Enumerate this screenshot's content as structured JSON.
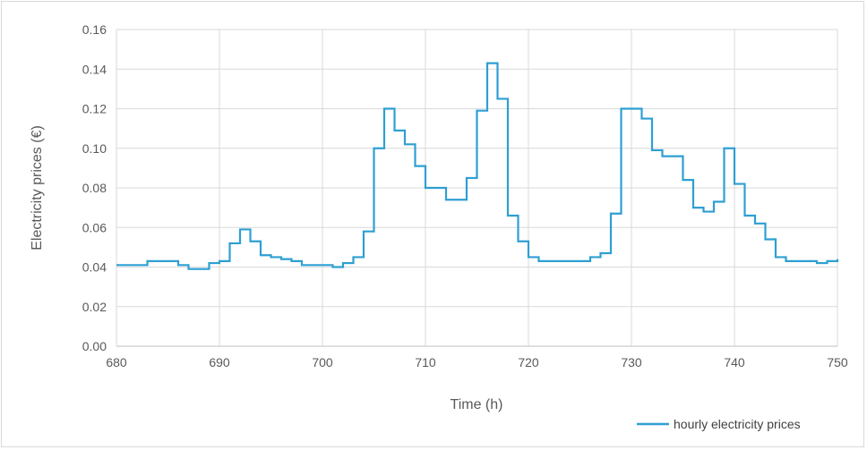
{
  "chart_data": {
    "type": "line",
    "title": "",
    "xlabel": "Time (h)",
    "ylabel": "Electricity prices (€)",
    "xlim": [
      680,
      750
    ],
    "ylim": [
      0,
      0.16
    ],
    "x_ticks": [
      "680",
      "690",
      "700",
      "710",
      "720",
      "730",
      "740",
      "750"
    ],
    "y_ticks": [
      "0.00",
      "0.02",
      "0.04",
      "0.06",
      "0.08",
      "0.10",
      "0.12",
      "0.14",
      "0.16"
    ],
    "grid": true,
    "legend_position": "bottom-right",
    "series": [
      {
        "name": "hourly electricity prices",
        "color": "#2e9fd2",
        "step": true,
        "x": [
          680,
          681,
          682,
          683,
          684,
          685,
          686,
          687,
          688,
          689,
          690,
          691,
          692,
          693,
          694,
          695,
          696,
          697,
          698,
          699,
          700,
          701,
          702,
          703,
          704,
          705,
          706,
          707,
          708,
          709,
          710,
          711,
          712,
          713,
          714,
          715,
          716,
          717,
          718,
          719,
          720,
          721,
          722,
          723,
          724,
          725,
          726,
          727,
          728,
          729,
          730,
          731,
          732,
          733,
          734,
          735,
          736,
          737,
          738,
          739,
          740,
          741,
          742,
          743,
          744,
          745,
          746,
          747,
          748,
          749,
          750
        ],
        "y": [
          0.041,
          0.041,
          0.041,
          0.043,
          0.043,
          0.043,
          0.041,
          0.039,
          0.039,
          0.042,
          0.043,
          0.052,
          0.059,
          0.053,
          0.046,
          0.045,
          0.044,
          0.043,
          0.041,
          0.041,
          0.041,
          0.04,
          0.042,
          0.045,
          0.058,
          0.1,
          0.12,
          0.109,
          0.102,
          0.091,
          0.08,
          0.08,
          0.074,
          0.074,
          0.085,
          0.119,
          0.143,
          0.125,
          0.066,
          0.053,
          0.045,
          0.043,
          0.043,
          0.043,
          0.043,
          0.043,
          0.045,
          0.047,
          0.067,
          0.12,
          0.12,
          0.115,
          0.099,
          0.096,
          0.096,
          0.084,
          0.07,
          0.068,
          0.073,
          0.1,
          0.082,
          0.066,
          0.062,
          0.054,
          0.045,
          0.043,
          0.043,
          0.043,
          0.042,
          0.043,
          0.044
        ]
      }
    ]
  }
}
